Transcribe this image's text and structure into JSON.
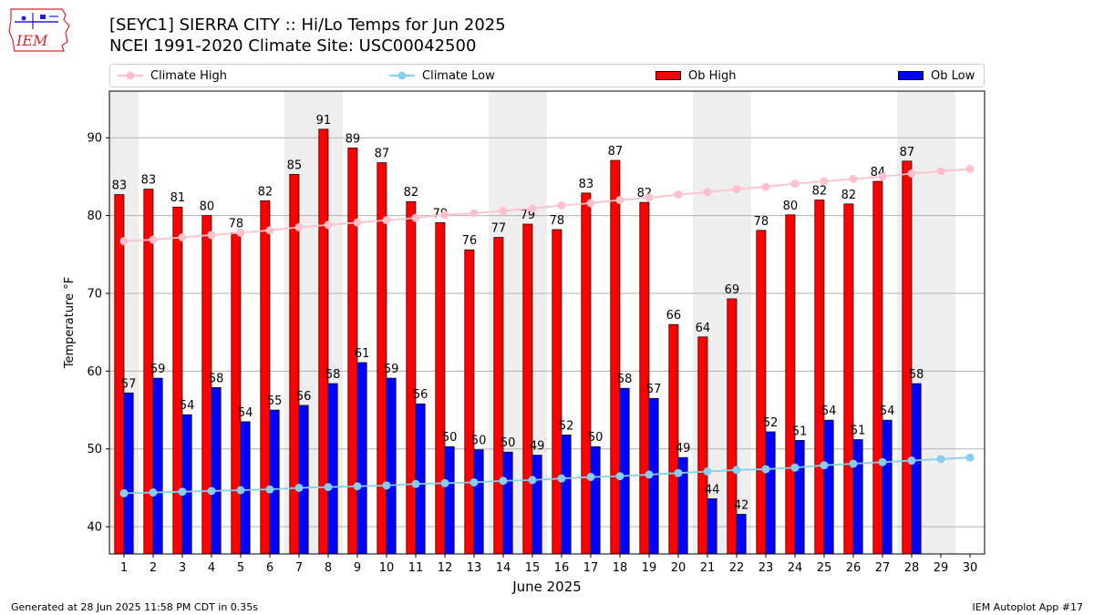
{
  "header": {
    "title_line1": "[SEYC1] SIERRA CITY :: Hi/Lo Temps for Jun 2025",
    "title_line2": "NCEI 1991-2020 Climate Site: USC00042500",
    "logo_text": "IEM"
  },
  "footer": {
    "left": "Generated at 28 Jun 2025 11:58 PM CDT in 0.35s",
    "right": "IEM Autoplot App #17"
  },
  "colors": {
    "ob_high": "#ff0000",
    "ob_low": "#0000ff",
    "climate_high": "#ffc0cb",
    "climate_low": "#87ceeb",
    "weekend_shade": "#eeeeee",
    "grid": "#b0b0b0",
    "logo_red": "#d42a2a",
    "logo_blue": "#2222cc"
  },
  "chart_data": {
    "type": "bar",
    "xlabel": "June 2025",
    "ylabel": "Temperature °F",
    "xlim": [
      0.5,
      30.5
    ],
    "ylim": [
      36.5,
      96
    ],
    "yticks": [
      40,
      50,
      60,
      70,
      80,
      90
    ],
    "grid": true,
    "legend_position": "top",
    "weekend_bands": [
      [
        0.5,
        1.5
      ],
      [
        6.5,
        8.5
      ],
      [
        13.5,
        15.5
      ],
      [
        20.5,
        22.5
      ],
      [
        27.5,
        29.5
      ]
    ],
    "categories": [
      "1",
      "2",
      "3",
      "4",
      "5",
      "6",
      "7",
      "8",
      "9",
      "10",
      "11",
      "12",
      "13",
      "14",
      "15",
      "16",
      "17",
      "18",
      "19",
      "20",
      "21",
      "22",
      "23",
      "24",
      "25",
      "26",
      "27",
      "28",
      "29",
      "30"
    ],
    "series": [
      {
        "name": "Ob High",
        "kind": "bar",
        "values": [
          82.7,
          83.4,
          81.1,
          80.0,
          77.8,
          81.9,
          85.3,
          91.1,
          88.7,
          86.8,
          81.8,
          79.1,
          75.6,
          77.2,
          78.9,
          78.2,
          82.9,
          87.1,
          81.7,
          66.0,
          64.4,
          69.3,
          78.1,
          80.1,
          82.0,
          81.5,
          84.4,
          87.0,
          null,
          null
        ],
        "labels": [
          "83",
          "83",
          "81",
          "80",
          "78",
          "82",
          "85",
          "91",
          "89",
          "87",
          "82",
          "79",
          "76",
          "77",
          "79",
          "78",
          "83",
          "87",
          "82",
          "66",
          "64",
          "69",
          "78",
          "80",
          "82",
          "82",
          "84",
          "87",
          "",
          ""
        ]
      },
      {
        "name": "Ob Low",
        "kind": "bar",
        "values": [
          57.2,
          59.1,
          54.4,
          57.9,
          53.5,
          55.0,
          55.6,
          58.4,
          61.1,
          59.1,
          55.8,
          50.3,
          49.9,
          49.6,
          49.2,
          51.8,
          50.3,
          57.8,
          56.5,
          48.9,
          43.6,
          41.6,
          52.2,
          51.1,
          53.7,
          51.2,
          53.7,
          58.4,
          null,
          null
        ],
        "labels": [
          "57",
          "59",
          "54",
          "58",
          "54",
          "55",
          "56",
          "58",
          "61",
          "59",
          "56",
          "50",
          "50",
          "50",
          "49",
          "52",
          "50",
          "58",
          "57",
          "49",
          "44",
          "42",
          "52",
          "51",
          "54",
          "51",
          "54",
          "58",
          "",
          ""
        ]
      },
      {
        "name": "Climate High",
        "kind": "line",
        "values": [
          76.7,
          76.9,
          77.2,
          77.5,
          77.8,
          78.1,
          78.5,
          78.8,
          79.1,
          79.4,
          79.7,
          80.1,
          80.3,
          80.6,
          80.9,
          81.3,
          81.6,
          82.0,
          82.3,
          82.7,
          83.0,
          83.4,
          83.7,
          84.1,
          84.4,
          84.7,
          85.0,
          85.4,
          85.7,
          86.0
        ]
      },
      {
        "name": "Climate Low",
        "kind": "line",
        "values": [
          44.3,
          44.4,
          44.5,
          44.6,
          44.7,
          44.8,
          45.0,
          45.1,
          45.2,
          45.3,
          45.5,
          45.6,
          45.7,
          45.9,
          46.0,
          46.2,
          46.4,
          46.5,
          46.7,
          46.9,
          47.1,
          47.3,
          47.4,
          47.6,
          47.9,
          48.1,
          48.3,
          48.5,
          48.7,
          48.9
        ]
      }
    ],
    "legend": [
      "Climate High",
      "Climate Low",
      "Ob High",
      "Ob Low"
    ]
  }
}
